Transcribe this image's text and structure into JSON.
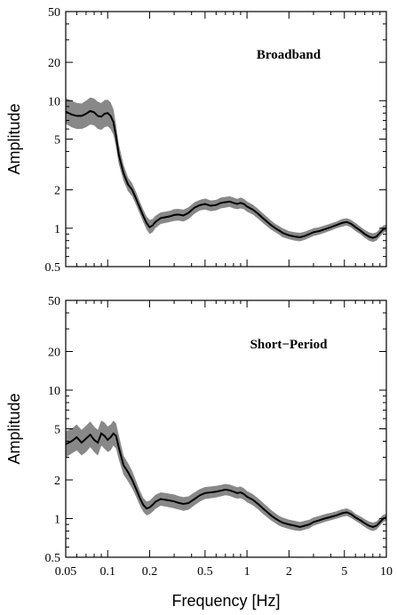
{
  "chart_data": [
    {
      "type": "area",
      "title": "Broadband",
      "xlabel": "",
      "ylabel": "Amplitude",
      "xscale": "log",
      "yscale": "log",
      "xlim": [
        0.05,
        10
      ],
      "ylim": [
        0.5,
        50
      ],
      "x_ticks": [
        0.05,
        0.1,
        0.2,
        0.5,
        1,
        2,
        5,
        10
      ],
      "y_ticks": [
        0.5,
        1,
        2,
        5,
        10,
        20,
        50
      ],
      "y_tick_labels": [
        "0.5",
        "1",
        "2",
        "5",
        "10",
        "20",
        "50"
      ],
      "grid": false,
      "band_color": "#888888",
      "line_color": "#000000",
      "x": [
        0.05,
        0.055,
        0.06,
        0.065,
        0.07,
        0.075,
        0.08,
        0.085,
        0.09,
        0.095,
        0.1,
        0.105,
        0.11,
        0.115,
        0.12,
        0.13,
        0.14,
        0.15,
        0.16,
        0.17,
        0.18,
        0.19,
        0.2,
        0.21,
        0.22,
        0.24,
        0.26,
        0.28,
        0.3,
        0.32,
        0.35,
        0.38,
        0.42,
        0.46,
        0.5,
        0.55,
        0.6,
        0.65,
        0.7,
        0.75,
        0.8,
        0.85,
        0.9,
        0.95,
        1.0,
        1.1,
        1.2,
        1.3,
        1.4,
        1.5,
        1.6,
        1.7,
        1.8,
        2.0,
        2.2,
        2.4,
        2.6,
        2.8,
        3.0,
        3.3,
        3.6,
        4.0,
        4.4,
        4.8,
        5.2,
        5.6,
        6.0,
        6.5,
        7.0,
        7.5,
        8.0,
        8.5,
        9.0,
        9.5,
        10.0
      ],
      "y": [
        8.2,
        7.8,
        7.6,
        7.6,
        7.9,
        8.3,
        8.1,
        7.6,
        7.5,
        7.9,
        8.0,
        7.6,
        6.8,
        5.2,
        3.8,
        2.7,
        2.2,
        2.0,
        1.7,
        1.45,
        1.25,
        1.1,
        1.02,
        1.05,
        1.12,
        1.2,
        1.22,
        1.24,
        1.27,
        1.28,
        1.26,
        1.32,
        1.45,
        1.52,
        1.55,
        1.5,
        1.52,
        1.58,
        1.6,
        1.62,
        1.58,
        1.55,
        1.58,
        1.55,
        1.48,
        1.4,
        1.3,
        1.2,
        1.12,
        1.05,
        1.0,
        0.96,
        0.92,
        0.88,
        0.86,
        0.85,
        0.87,
        0.9,
        0.93,
        0.95,
        0.98,
        1.02,
        1.06,
        1.1,
        1.12,
        1.08,
        1.02,
        0.96,
        0.9,
        0.86,
        0.84,
        0.86,
        0.92,
        0.98,
        1.0
      ],
      "lower": [
        6.6,
        6.2,
        6.0,
        6.0,
        6.2,
        6.5,
        6.4,
        6.0,
        5.9,
        6.2,
        6.3,
        6.0,
        5.4,
        4.3,
        3.2,
        2.35,
        1.95,
        1.78,
        1.52,
        1.3,
        1.12,
        0.98,
        0.9,
        0.93,
        1.0,
        1.08,
        1.1,
        1.12,
        1.14,
        1.15,
        1.13,
        1.18,
        1.3,
        1.38,
        1.4,
        1.36,
        1.38,
        1.43,
        1.45,
        1.47,
        1.43,
        1.41,
        1.43,
        1.41,
        1.35,
        1.28,
        1.19,
        1.1,
        1.03,
        0.97,
        0.93,
        0.89,
        0.85,
        0.82,
        0.8,
        0.79,
        0.81,
        0.84,
        0.87,
        0.89,
        0.92,
        0.96,
        1.0,
        1.03,
        1.05,
        1.01,
        0.95,
        0.9,
        0.84,
        0.8,
        0.78,
        0.8,
        0.86,
        0.92,
        0.94
      ],
      "upper": [
        10.5,
        10.0,
        9.6,
        9.5,
        10.0,
        10.6,
        10.4,
        9.8,
        9.6,
        10.1,
        10.2,
        9.7,
        8.6,
        6.4,
        4.6,
        3.15,
        2.5,
        2.25,
        1.92,
        1.62,
        1.4,
        1.24,
        1.16,
        1.18,
        1.25,
        1.33,
        1.35,
        1.37,
        1.41,
        1.42,
        1.4,
        1.46,
        1.6,
        1.67,
        1.71,
        1.65,
        1.67,
        1.74,
        1.76,
        1.78,
        1.74,
        1.7,
        1.74,
        1.7,
        1.62,
        1.53,
        1.42,
        1.31,
        1.22,
        1.14,
        1.08,
        1.04,
        1.0,
        0.95,
        0.93,
        0.92,
        0.94,
        0.97,
        1.0,
        1.02,
        1.05,
        1.09,
        1.13,
        1.18,
        1.2,
        1.16,
        1.1,
        1.03,
        0.97,
        0.93,
        0.91,
        0.93,
        0.99,
        1.05,
        1.07
      ]
    },
    {
      "type": "area",
      "title": "Short−Period",
      "xlabel": "Frequency [Hz]",
      "ylabel": "Amplitude",
      "xscale": "log",
      "yscale": "log",
      "xlim": [
        0.05,
        10
      ],
      "ylim": [
        0.5,
        50
      ],
      "x_ticks": [
        0.05,
        0.1,
        0.2,
        0.5,
        1,
        2,
        5,
        10
      ],
      "x_tick_labels": [
        "0.05",
        "0.1",
        "0.2",
        "0.5",
        "1",
        "2",
        "5",
        "10"
      ],
      "y_ticks": [
        0.5,
        1,
        2,
        5,
        10,
        20,
        50
      ],
      "y_tick_labels": [
        "0.5",
        "1",
        "2",
        "5",
        "10",
        "20",
        "50"
      ],
      "grid": false,
      "band_color": "#888888",
      "line_color": "#000000",
      "x": [
        0.05,
        0.055,
        0.06,
        0.065,
        0.07,
        0.075,
        0.08,
        0.085,
        0.09,
        0.095,
        0.1,
        0.105,
        0.11,
        0.115,
        0.12,
        0.13,
        0.14,
        0.15,
        0.16,
        0.17,
        0.18,
        0.19,
        0.2,
        0.21,
        0.22,
        0.24,
        0.26,
        0.28,
        0.3,
        0.32,
        0.35,
        0.38,
        0.42,
        0.46,
        0.5,
        0.55,
        0.6,
        0.65,
        0.7,
        0.75,
        0.8,
        0.85,
        0.9,
        0.95,
        1.0,
        1.1,
        1.2,
        1.3,
        1.4,
        1.5,
        1.6,
        1.7,
        1.8,
        2.0,
        2.2,
        2.4,
        2.6,
        2.8,
        3.0,
        3.3,
        3.6,
        4.0,
        4.4,
        4.8,
        5.2,
        5.6,
        6.0,
        6.5,
        7.0,
        7.5,
        8.0,
        8.5,
        9.0,
        9.5,
        10.0
      ],
      "y": [
        3.8,
        4.0,
        4.3,
        3.9,
        4.2,
        4.5,
        4.1,
        3.9,
        4.6,
        4.4,
        4.1,
        4.3,
        4.6,
        4.4,
        3.6,
        2.6,
        2.3,
        2.0,
        1.7,
        1.45,
        1.28,
        1.2,
        1.22,
        1.28,
        1.35,
        1.42,
        1.4,
        1.38,
        1.36,
        1.33,
        1.3,
        1.32,
        1.42,
        1.52,
        1.58,
        1.6,
        1.62,
        1.65,
        1.68,
        1.66,
        1.62,
        1.58,
        1.6,
        1.55,
        1.48,
        1.4,
        1.3,
        1.2,
        1.12,
        1.05,
        1.0,
        0.96,
        0.93,
        0.9,
        0.88,
        0.86,
        0.88,
        0.9,
        0.94,
        0.97,
        1.0,
        1.03,
        1.06,
        1.1,
        1.12,
        1.08,
        1.02,
        0.97,
        0.92,
        0.88,
        0.86,
        0.88,
        0.94,
        1.0,
        1.02
      ],
      "lower": [
        3.0,
        3.2,
        3.4,
        3.1,
        3.3,
        3.6,
        3.3,
        3.1,
        3.7,
        3.5,
        3.3,
        3.4,
        3.7,
        3.5,
        2.9,
        2.2,
        1.95,
        1.72,
        1.48,
        1.27,
        1.13,
        1.06,
        1.08,
        1.13,
        1.19,
        1.26,
        1.24,
        1.22,
        1.2,
        1.18,
        1.15,
        1.17,
        1.27,
        1.36,
        1.42,
        1.44,
        1.46,
        1.49,
        1.52,
        1.5,
        1.46,
        1.43,
        1.44,
        1.4,
        1.34,
        1.27,
        1.18,
        1.09,
        1.02,
        0.96,
        0.92,
        0.88,
        0.86,
        0.83,
        0.81,
        0.8,
        0.82,
        0.84,
        0.88,
        0.91,
        0.94,
        0.97,
        1.0,
        1.03,
        1.05,
        1.01,
        0.96,
        0.91,
        0.86,
        0.82,
        0.8,
        0.82,
        0.88,
        0.94,
        0.96
      ],
      "upper": [
        4.8,
        5.0,
        5.4,
        4.9,
        5.3,
        5.7,
        5.2,
        4.9,
        5.8,
        5.6,
        5.2,
        5.4,
        5.8,
        5.5,
        4.5,
        3.1,
        2.7,
        2.35,
        1.96,
        1.66,
        1.45,
        1.36,
        1.38,
        1.45,
        1.53,
        1.6,
        1.58,
        1.56,
        1.54,
        1.5,
        1.47,
        1.49,
        1.6,
        1.7,
        1.76,
        1.78,
        1.8,
        1.83,
        1.86,
        1.84,
        1.8,
        1.75,
        1.78,
        1.72,
        1.64,
        1.55,
        1.44,
        1.33,
        1.24,
        1.16,
        1.1,
        1.05,
        1.02,
        0.98,
        0.96,
        0.94,
        0.96,
        0.98,
        1.02,
        1.05,
        1.08,
        1.11,
        1.14,
        1.18,
        1.2,
        1.16,
        1.09,
        1.04,
        0.99,
        0.95,
        0.93,
        0.95,
        1.01,
        1.07,
        1.09
      ]
    }
  ]
}
